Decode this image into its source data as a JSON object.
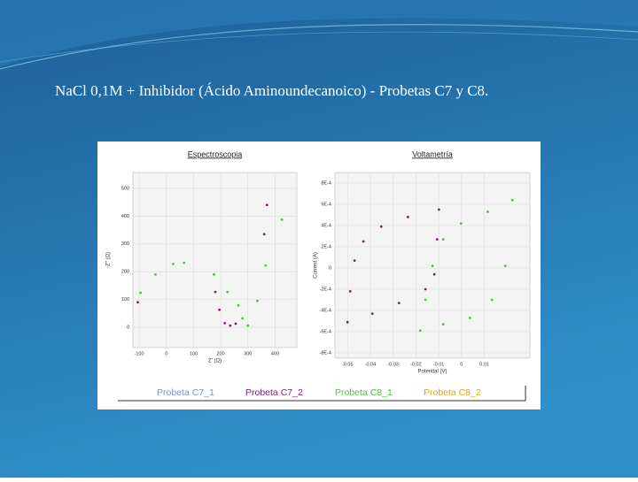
{
  "slide": {
    "title": "NaCl 0,1M + Inhibidor (Ácido Aminoundecanoico)  - Probetas C7  y C8."
  },
  "chart_data": [
    {
      "type": "scatter",
      "title": "Espectroscopia",
      "x_label": "Z' (Ω)",
      "y_label": "-Z'' (Ω)",
      "xlim": [
        -123,
        480
      ],
      "ylim": [
        -73,
        557
      ],
      "xticks": [
        -100,
        0,
        100,
        200,
        300,
        400
      ],
      "yticks": [
        0,
        100,
        200,
        300,
        400,
        500
      ],
      "grid": true,
      "series": [
        {
          "name": "Probeta C7_1",
          "color": "#7f8fc8",
          "x": [],
          "values": []
        },
        {
          "name": "Probeta C7_2",
          "color": "#7a1f78",
          "x": [
            -105,
            180,
            195,
            215,
            235,
            255,
            360,
            370
          ],
          "values": [
            90,
            127,
            63,
            15,
            6,
            13,
            335,
            440
          ]
        },
        {
          "name": "Probeta C8_1",
          "color": "#4cc43c",
          "x": [
            -95,
            -40,
            25,
            65,
            175,
            225,
            265,
            280,
            300,
            335,
            365,
            425
          ],
          "values": [
            124,
            190,
            228,
            232,
            190,
            127,
            79,
            32,
            6,
            95,
            222,
            387
          ]
        },
        {
          "name": "Probeta C8_2",
          "color": "#e3a21a",
          "x": [],
          "values": []
        }
      ]
    },
    {
      "type": "scatter",
      "title": "Voltametría",
      "x_label": "Potential (V)",
      "y_label": "Current (A)",
      "xlim": [
        -0.0555,
        0.03
      ],
      "ylim": [
        -0.00085,
        0.0009
      ],
      "xticks": [
        -0.05,
        -0.04,
        -0.03,
        -0.02,
        -0.01,
        0,
        0.01
      ],
      "yticks": [
        {
          "value": 0.0008,
          "label": "8E-4"
        },
        {
          "value": 0.0006,
          "label": "6E-4"
        },
        {
          "value": 0.0004,
          "label": "4E-4"
        },
        {
          "value": 0.0002,
          "label": "2E-4"
        },
        0,
        {
          "value": -0.0002,
          "label": "-2E-4"
        },
        {
          "value": -0.0004,
          "label": "-4E-4"
        },
        {
          "value": -0.0006,
          "label": "-6E-4"
        },
        {
          "value": -0.0008,
          "label": "-8E-4"
        }
      ],
      "grid": true,
      "series": [
        {
          "color": "#7a1f78",
          "x": [
            -0.05,
            -0.0391,
            -0.0274,
            -0.0158,
            -0.0119,
            -0.0107,
            -0.0099,
            -0.0488,
            -0.0469,
            -0.043,
            -0.0352,
            -0.0235
          ],
          "values": [
            -0.00051,
            -0.00043,
            -0.00033,
            -0.0002,
            -6e-05,
            0.00027,
            0.00055,
            -0.00022,
            7e-05,
            0.00025,
            0.00039,
            0.00048
          ]
        },
        {
          "color": "#4cc43c",
          "x": [
            -0.0181,
            -0.008,
            0.0037,
            0.0134,
            0.0192,
            0.0223,
            -0.0158,
            -0.0127,
            -0.008,
            -0.0002,
            0.0115
          ],
          "values": [
            -0.00059,
            -0.00053,
            -0.00047,
            -0.0003,
            2e-05,
            0.00064,
            -0.0003,
            2e-05,
            0.00027,
            0.00042,
            0.00053
          ]
        }
      ]
    }
  ]
}
